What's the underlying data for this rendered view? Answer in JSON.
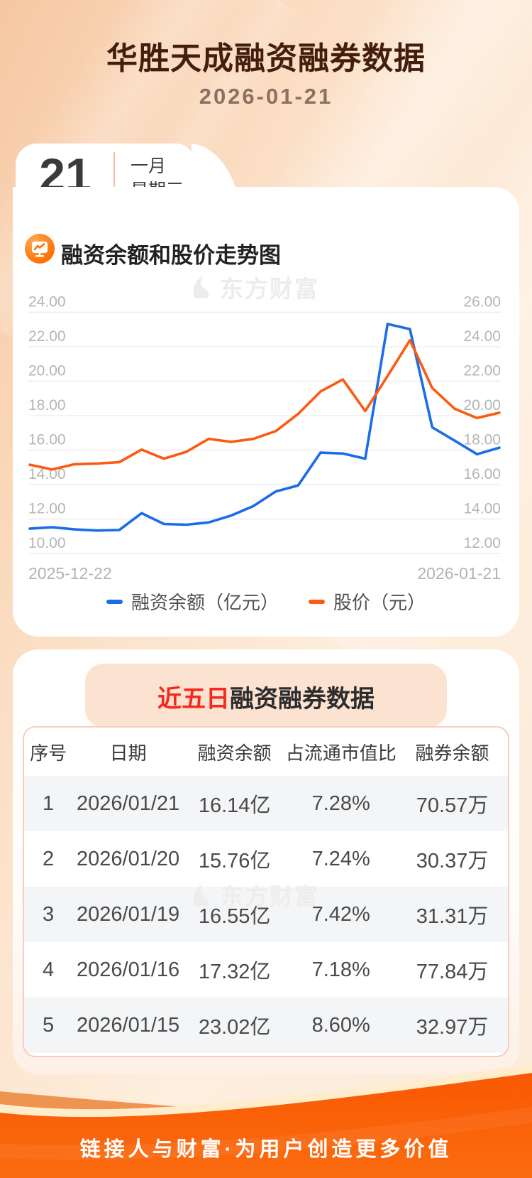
{
  "header": {
    "title": "华胜天成融资融券数据",
    "date": "2026-01-21"
  },
  "calendar": {
    "day": "21",
    "month": "一月",
    "weekday": "星期三"
  },
  "chart_section": {
    "icon": "monitor-chart-icon",
    "title": "融资余额和股价走势图"
  },
  "watermark": {
    "brand": "东方财富"
  },
  "chart_data": {
    "type": "line",
    "x": [
      "2025-12-22",
      "2025-12-23",
      "2025-12-24",
      "2025-12-25",
      "2025-12-26",
      "2025-12-29",
      "2025-12-30",
      "2025-12-31",
      "2026-01-02",
      "2026-01-05",
      "2026-01-06",
      "2026-01-07",
      "2026-01-08",
      "2026-01-09",
      "2026-01-12",
      "2026-01-13",
      "2026-01-14",
      "2026-01-15",
      "2026-01-16",
      "2026-01-19",
      "2026-01-20",
      "2026-01-21"
    ],
    "series": [
      {
        "name": "融资余额（亿元）",
        "axis": "left",
        "color": "#1b6ce8",
        "values": [
          11.44,
          11.52,
          11.4,
          11.33,
          11.36,
          12.34,
          11.71,
          11.67,
          11.8,
          12.2,
          12.75,
          13.6,
          13.95,
          15.85,
          15.8,
          15.5,
          23.32,
          23.02,
          17.32,
          16.55,
          15.76,
          16.14
        ]
      },
      {
        "name": "股价（元）",
        "axis": "right",
        "color": "#fc5a10",
        "values": [
          17.15,
          16.88,
          17.18,
          17.22,
          17.3,
          18.03,
          17.5,
          17.9,
          18.65,
          18.48,
          18.65,
          19.1,
          20.1,
          21.4,
          22.1,
          20.27,
          22.3,
          24.38,
          21.6,
          20.4,
          19.86,
          20.17
        ]
      }
    ],
    "left_axis": {
      "min": 10,
      "max": 24,
      "ticks": [
        "24.00",
        "22.00",
        "20.00",
        "18.00",
        "16.00",
        "14.00",
        "12.00",
        "10.00"
      ]
    },
    "right_axis": {
      "min": 12,
      "max": 26,
      "ticks": [
        "26.00",
        "24.00",
        "22.00",
        "20.00",
        "18.00",
        "16.00",
        "14.00",
        "12.00"
      ]
    },
    "x_labels": {
      "start": "2025-12-22",
      "end": "2026-01-21"
    },
    "grid": true,
    "legend_position": "bottom",
    "title": "融资余额和股价走势图"
  },
  "table_section": {
    "title_highlight": "近五日",
    "title_rest": "融资融券数据",
    "columns": [
      "序号",
      "日期",
      "融资余额",
      "占流通市值比",
      "融券余额"
    ],
    "rows": [
      [
        "1",
        "2026/01/21",
        "16.14亿",
        "7.28%",
        "70.57万"
      ],
      [
        "2",
        "2026/01/20",
        "15.76亿",
        "7.24%",
        "30.37万"
      ],
      [
        "3",
        "2026/01/19",
        "16.55亿",
        "7.42%",
        "31.31万"
      ],
      [
        "4",
        "2026/01/16",
        "17.32亿",
        "7.18%",
        "77.84万"
      ],
      [
        "5",
        "2026/01/15",
        "23.02亿",
        "8.60%",
        "32.97万"
      ]
    ]
  },
  "footer": {
    "slogan": "链接人与财富·为用户创造更多价值"
  },
  "colors": {
    "title_brown": "#431d0d",
    "accent_orange": "#fe6a02",
    "line_blue": "#1b6ce8",
    "line_orange": "#fc5a10",
    "highlight_red": "#f5291d",
    "badge_peach": "#fce2d1",
    "row_gray": "#f4f5f7",
    "footer_orange": "#fb5c02",
    "grid_gray": "#ededed"
  }
}
